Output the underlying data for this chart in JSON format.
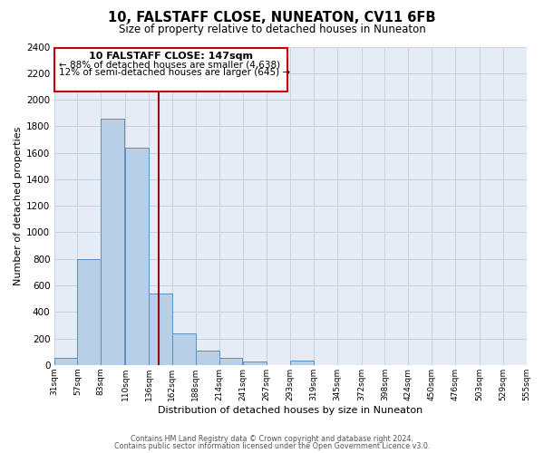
{
  "title": "10, FALSTAFF CLOSE, NUNEATON, CV11 6FB",
  "subtitle": "Size of property relative to detached houses in Nuneaton",
  "xlabel": "Distribution of detached houses by size in Nuneaton",
  "ylabel": "Number of detached properties",
  "bin_labels": [
    "31sqm",
    "57sqm",
    "83sqm",
    "110sqm",
    "136sqm",
    "162sqm",
    "188sqm",
    "214sqm",
    "241sqm",
    "267sqm",
    "293sqm",
    "319sqm",
    "345sqm",
    "372sqm",
    "398sqm",
    "424sqm",
    "450sqm",
    "476sqm",
    "503sqm",
    "529sqm",
    "555sqm"
  ],
  "bin_edges": [
    31,
    57,
    83,
    110,
    136,
    162,
    188,
    214,
    241,
    267,
    293,
    319,
    345,
    372,
    398,
    424,
    450,
    476,
    503,
    529,
    555
  ],
  "bar_values": [
    50,
    800,
    1860,
    1640,
    540,
    235,
    110,
    50,
    25,
    0,
    30,
    0,
    0,
    0,
    0,
    0,
    0,
    0,
    0,
    0
  ],
  "bar_color": "#b8cfe8",
  "bar_edge_color": "#5b8fc0",
  "vline_x": 147,
  "vline_color": "#8b1010",
  "ylim": [
    0,
    2400
  ],
  "yticks": [
    0,
    200,
    400,
    600,
    800,
    1000,
    1200,
    1400,
    1600,
    1800,
    2000,
    2200,
    2400
  ],
  "grid_color": "#c5d2e0",
  "bg_color": "#e5ecf5",
  "ann_title": "10 FALSTAFF CLOSE: 147sqm",
  "ann_line1": "← 88% of detached houses are smaller (4,638)",
  "ann_line2": "12% of semi-detached houses are larger (645) →",
  "ann_facecolor": "#ffffff",
  "ann_edgecolor": "#cc0000",
  "footer1": "Contains HM Land Registry data © Crown copyright and database right 2024.",
  "footer2": "Contains public sector information licensed under the Open Government Licence v3.0."
}
